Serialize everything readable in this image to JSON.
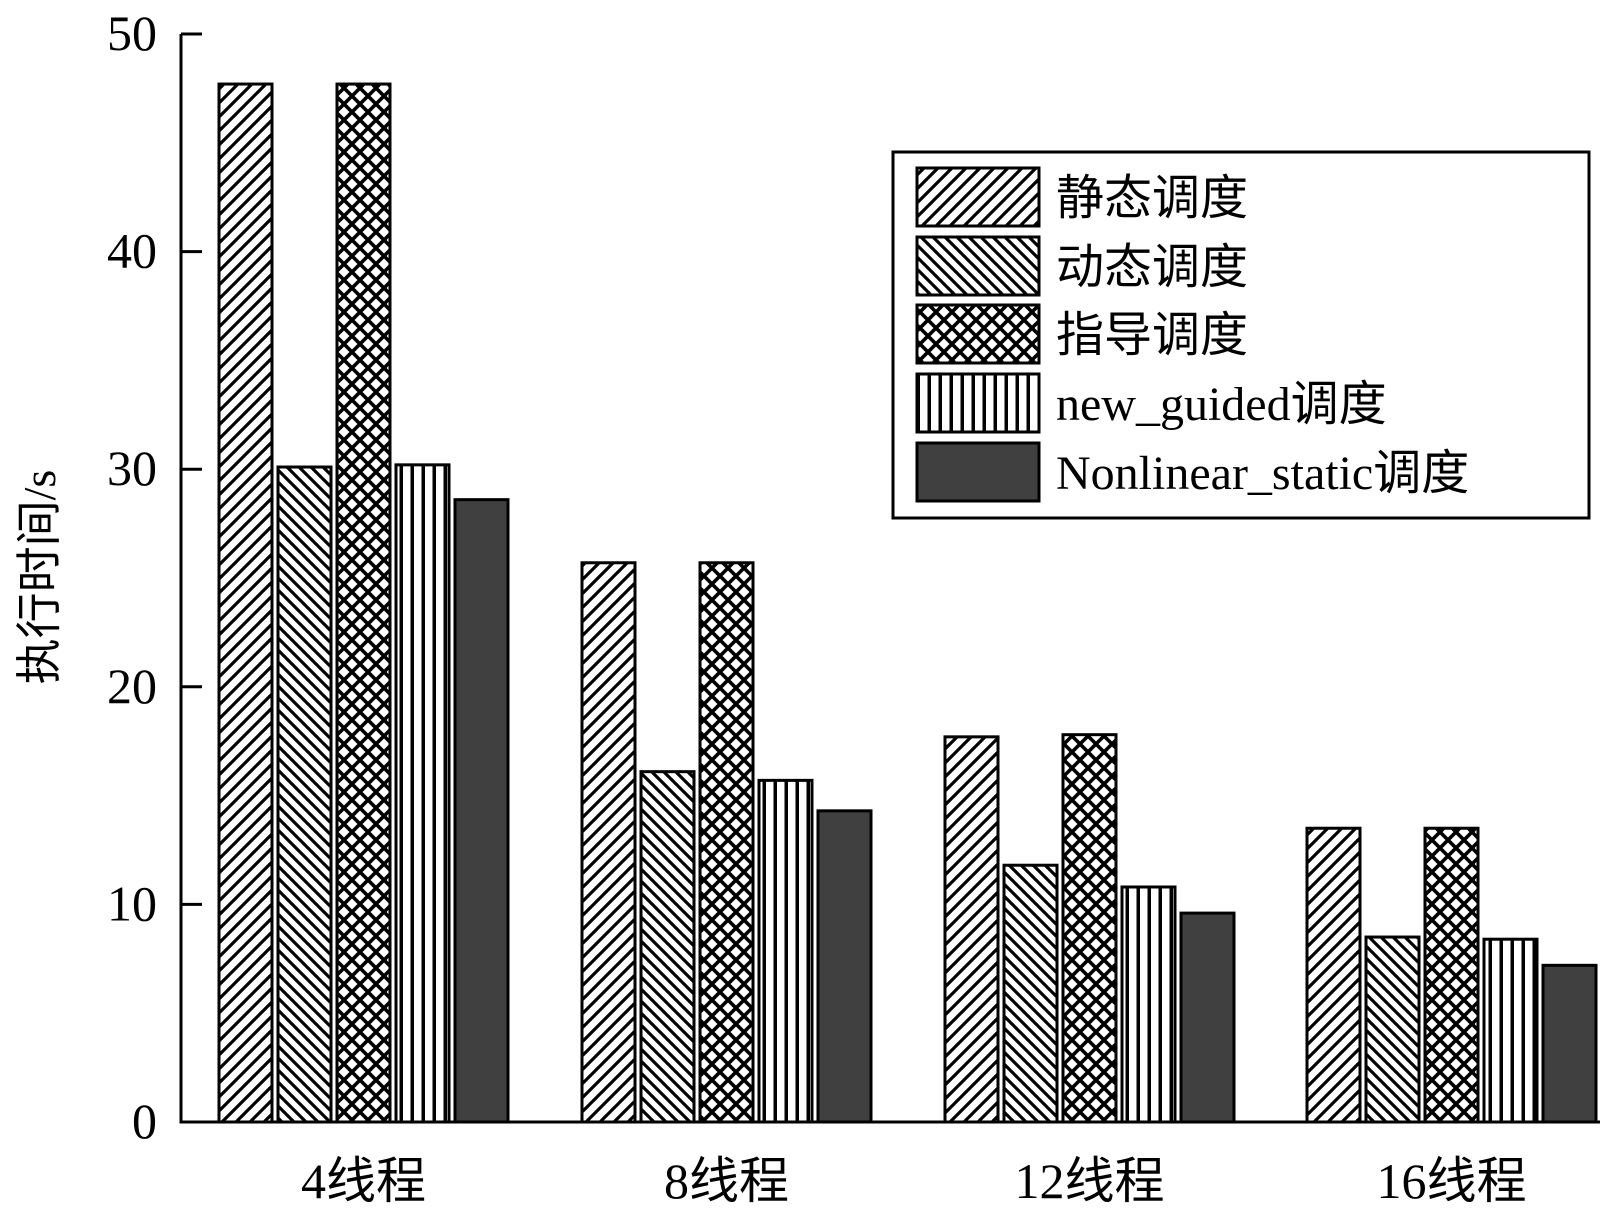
{
  "chart_data": {
    "type": "bar",
    "title": "",
    "xlabel": "",
    "ylabel": "执行时间/s",
    "ylim": [
      0,
      50
    ],
    "yticks": [
      0,
      10,
      20,
      30,
      40,
      50
    ],
    "grid": false,
    "legend_position": "top-right",
    "categories": [
      "4线程",
      "8线程",
      "12线程",
      "16线程"
    ],
    "series": [
      {
        "name": "静态调度",
        "pattern": "diagonal-forward",
        "color": "#ffffff",
        "values": [
          47.7,
          25.7,
          17.7,
          13.5
        ]
      },
      {
        "name": "动态调度",
        "pattern": "diagonal-backward",
        "color": "#ffffff",
        "values": [
          30.1,
          16.1,
          11.8,
          8.5
        ]
      },
      {
        "name": "指导调度",
        "pattern": "crosshatch",
        "color": "#ffffff",
        "values": [
          47.7,
          25.7,
          17.8,
          13.5
        ]
      },
      {
        "name": "new_guided调度",
        "pattern": "vertical",
        "color": "#ffffff",
        "values": [
          30.2,
          15.7,
          10.8,
          8.4
        ]
      },
      {
        "name": "Nonlinear_static调度",
        "pattern": "solid",
        "color": "#404040",
        "values": [
          28.6,
          14.3,
          9.6,
          7.2
        ]
      }
    ]
  }
}
